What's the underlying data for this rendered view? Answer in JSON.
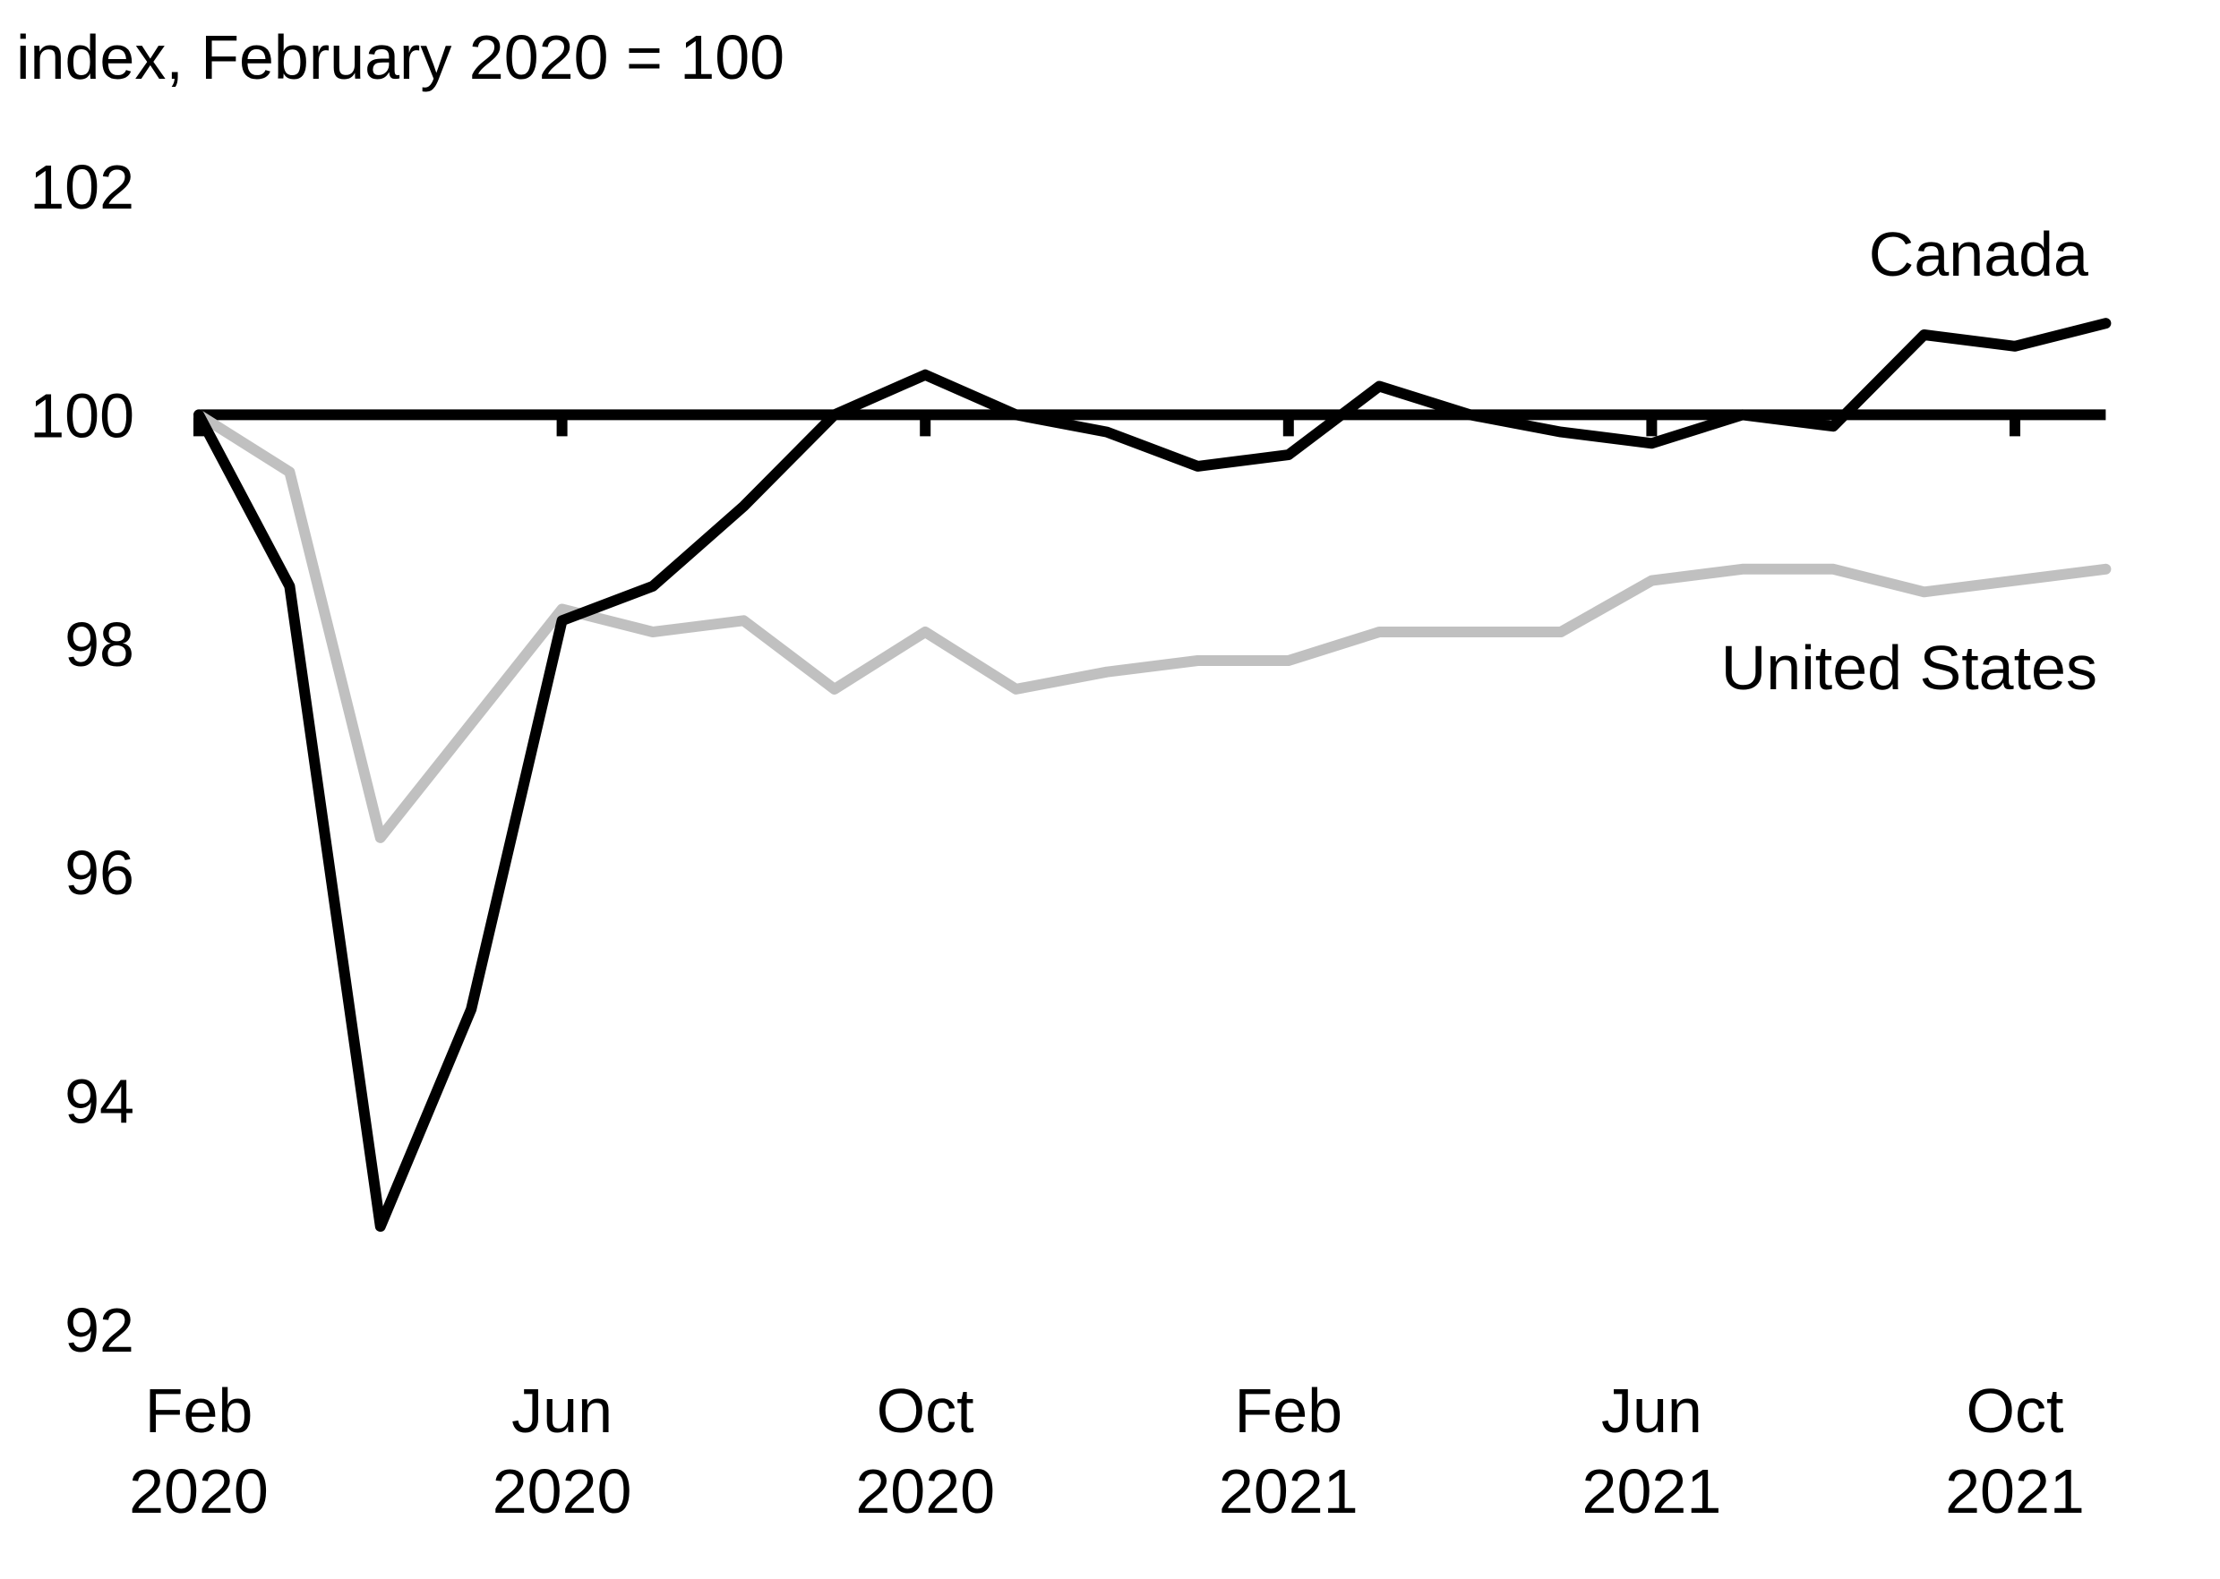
{
  "chart_data": {
    "type": "line",
    "ylabel": "index, February 2020 = 100",
    "ylim": [
      92,
      102
    ],
    "y_ticks": [
      "102",
      "100",
      "98",
      "96",
      "94",
      "92"
    ],
    "x": [
      "Feb 2020",
      "Mar 2020",
      "Apr 2020",
      "May 2020",
      "Jun 2020",
      "Jul 2020",
      "Aug 2020",
      "Sep 2020",
      "Oct 2020",
      "Nov 2020",
      "Dec 2020",
      "Jan 2021",
      "Feb 2021",
      "Mar 2021",
      "Apr 2021",
      "May 2021",
      "Jun 2021",
      "Jul 2021",
      "Aug 2021",
      "Sep 2021",
      "Oct 2021",
      "Nov 2021"
    ],
    "x_ticks": [
      {
        "line1": "Feb",
        "line2": "2020"
      },
      {
        "line1": "Jun",
        "line2": "2020"
      },
      {
        "line1": "Oct",
        "line2": "2020"
      },
      {
        "line1": "Feb",
        "line2": "2021"
      },
      {
        "line1": "Jun",
        "line2": "2021"
      },
      {
        "line1": "Oct",
        "line2": "2021"
      }
    ],
    "reference_line": 100,
    "grid": false,
    "series": [
      {
        "name": "Canada",
        "color": "#000000",
        "values": [
          100,
          98.5,
          92.9,
          94.8,
          98.2,
          98.5,
          99.2,
          100.0,
          100.35,
          100.0,
          99.85,
          99.55,
          99.65,
          100.25,
          100.0,
          99.85,
          99.75,
          100.0,
          99.9,
          100.7,
          100.6,
          100.8
        ]
      },
      {
        "name": "United States",
        "color": "#c0c0c0",
        "values": [
          100,
          99.5,
          96.3,
          97.3,
          98.3,
          98.1,
          98.2,
          97.6,
          98.1,
          97.6,
          97.75,
          97.85,
          97.85,
          98.1,
          98.1,
          98.1,
          98.55,
          98.65,
          98.65,
          98.45,
          98.55,
          98.65
        ]
      }
    ]
  }
}
